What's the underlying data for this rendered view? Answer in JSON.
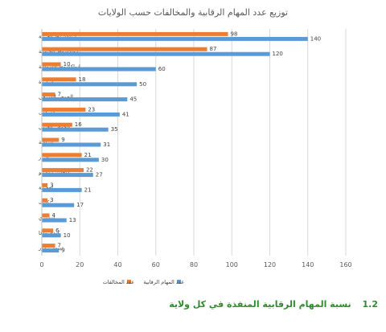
{
  "chart_data": {
    "type": "bar",
    "orientation": "horizontal",
    "title": "توزيع عدد المهام الرقابية والمخالفات حسب الولايات",
    "categories": [
      "انواكشوط الغربية",
      "انواكشوط الجنوبية",
      "انواكشوط الشمالية",
      "اترارزة",
      "الحوض الشرقي",
      "كوركول",
      "الحوض الغربي",
      "لبراكنة",
      "آدرار",
      "داخلت انواذيبو",
      "لعصابة",
      "تكانت",
      "إنشيري",
      "كيدي ماغا",
      "تيرس زمور"
    ],
    "series": [
      {
        "name": "عدد المهام الرقابية",
        "color": "#5b9bd5",
        "values": [
          140,
          120,
          60,
          50,
          45,
          41,
          35,
          31,
          30,
          27,
          21,
          17,
          13,
          10,
          9
        ]
      },
      {
        "name": "عدد المخالفات",
        "color": "#ed7d31",
        "values": [
          98,
          87,
          10,
          18,
          7,
          23,
          16,
          9,
          21,
          22,
          3,
          3,
          4,
          6,
          7
        ]
      }
    ],
    "xlim": [
      0,
      160
    ],
    "xticks": [
      0,
      20,
      40,
      60,
      80,
      100,
      120,
      140,
      160
    ],
    "grid": true,
    "legend_position": "bottom"
  },
  "caption": {
    "number": "1.2",
    "text": "نسبة المهام الرقابية المنفذة في كل ولاية"
  }
}
